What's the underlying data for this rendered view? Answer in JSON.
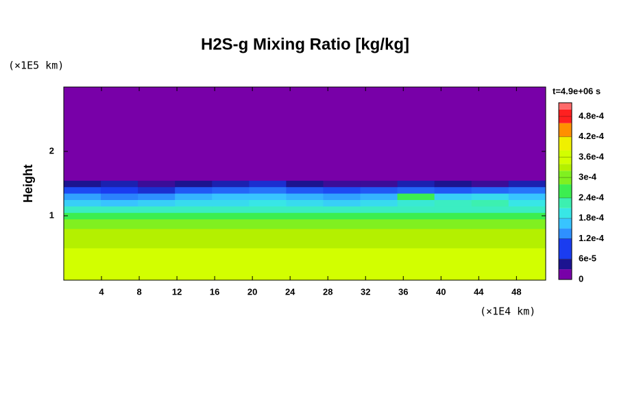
{
  "chart_data": {
    "type": "heatmap",
    "title": "H2S-g Mixing Ratio [kg/kg]",
    "y_label": "Height",
    "y_unit": "(×1E5 km)",
    "x_unit": "(×1E4 km)",
    "time_label": "t=4.9e+06 s",
    "x_edges": [
      0,
      3.93,
      7.86,
      11.79,
      15.72,
      19.65,
      23.58,
      27.51,
      31.44,
      35.37,
      39.3,
      43.23,
      47.16,
      51.1
    ],
    "y_edges": [
      0,
      0.5,
      0.8,
      0.95,
      1.05,
      1.15,
      1.25,
      1.35,
      1.45,
      1.55,
      3.0
    ],
    "z": [
      [
        0.00034,
        0.00034,
        0.00034,
        0.00034,
        0.00034,
        0.00034,
        0.00034,
        0.00034,
        0.00034,
        0.00034,
        0.00034,
        0.00034,
        0.00034
      ],
      [
        0.00032,
        0.00032,
        0.00032,
        0.00032,
        0.00032,
        0.00032,
        0.00032,
        0.00032,
        0.00032,
        0.00032,
        0.00032,
        0.00032,
        0.00032
      ],
      [
        0.00028,
        0.00028,
        0.00028,
        0.00028,
        0.00028,
        0.00028,
        0.00028,
        0.00028,
        0.00028,
        0.00028,
        0.00028,
        0.00028,
        0.00028
      ],
      [
        0.00024,
        0.00024,
        0.00024,
        0.00024,
        0.00024,
        0.00024,
        0.00024,
        0.00024,
        0.00024,
        0.00024,
        0.00024,
        0.00024,
        0.00024
      ],
      [
        0.0002,
        0.0002,
        0.0002,
        0.0002,
        0.0002,
        0.0002,
        0.0002,
        0.0002,
        0.0002,
        0.0002,
        0.0002,
        0.0002,
        0.0002
      ],
      [
        0.00016,
        0.00015,
        0.00016,
        0.00017,
        0.00017,
        0.00018,
        0.00017,
        0.00016,
        0.00017,
        0.00019,
        0.0002,
        0.00021,
        0.00018
      ],
      [
        0.00013,
        0.00011,
        0.00012,
        0.00014,
        0.00015,
        0.00015,
        0.00014,
        0.00013,
        0.00014,
        0.00024,
        0.00016,
        0.00017,
        0.00015
      ],
      [
        7e-05,
        6e-05,
        5e-05,
        8e-05,
        9e-05,
        0.0001,
        8e-05,
        7e-05,
        8e-05,
        9e-05,
        8e-05,
        9e-05,
        0.0001
      ],
      [
        3e-05,
        4e-05,
        2e-05,
        3e-05,
        4e-05,
        5e-05,
        3e-05,
        2e-05,
        2e-05,
        4e-05,
        3e-05,
        2e-05,
        4e-05
      ],
      [
        0,
        0,
        0,
        0,
        0,
        0,
        0,
        0,
        0,
        0,
        0,
        0,
        0
      ]
    ],
    "xlim": [
      0,
      51.1
    ],
    "ylim": [
      0,
      3
    ],
    "xticks": [
      4,
      8,
      12,
      16,
      20,
      24,
      28,
      32,
      36,
      40,
      44,
      48
    ],
    "yticks": [
      1,
      2
    ],
    "clim": [
      0,
      0.00052
    ],
    "cticks": [
      0,
      {
        "value": 6e-05,
        "label": "6e-5"
      },
      {
        "value": 0.00012,
        "label": "1.2e-4"
      },
      {
        "value": 0.00018,
        "label": "1.8e-4"
      },
      {
        "value": 0.00024,
        "label": "2.4e-4"
      },
      {
        "value": 0.0003,
        "label": "3e-4"
      },
      {
        "value": 0.00036,
        "label": "3.6e-4"
      },
      {
        "value": 0.00042,
        "label": "4.2e-4"
      },
      {
        "value": 0.00048,
        "label": "4.8e-4"
      }
    ],
    "colorscale": [
      {
        "value": 0,
        "color": "#7800a8"
      },
      {
        "value": 3e-05,
        "color": "#1c1490"
      },
      {
        "value": 6e-05,
        "color": "#1a3cf0"
      },
      {
        "value": 0.00012,
        "color": "#2e90ff"
      },
      {
        "value": 0.00015,
        "color": "#38c4ff"
      },
      {
        "value": 0.00018,
        "color": "#38e6e6"
      },
      {
        "value": 0.00021,
        "color": "#3cf0b0"
      },
      {
        "value": 0.00024,
        "color": "#3cee50"
      },
      {
        "value": 0.00028,
        "color": "#80f020"
      },
      {
        "value": 0.00032,
        "color": "#b4f000"
      },
      {
        "value": 0.00034,
        "color": "#d2ff00"
      },
      {
        "value": 0.00038,
        "color": "#f0f000"
      },
      {
        "value": 0.00042,
        "color": "#ff9000"
      },
      {
        "value": 0.00046,
        "color": "#ff2020"
      },
      {
        "value": 0.0005,
        "color": "#ff6a6a"
      }
    ]
  }
}
